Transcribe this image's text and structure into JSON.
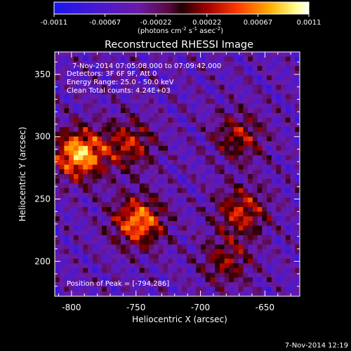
{
  "colorbar": {
    "ticks": [
      "-0.0011",
      "-0.00067",
      "-0.00022",
      "0.00022",
      "0.00067",
      "0.0011"
    ],
    "units_main": "(photons cm",
    "units_exp1": "-2",
    "units_mid": " s",
    "units_exp2": "-1",
    "units_end": " asec",
    "units_exp3": "-2",
    "units_close": ")"
  },
  "chart_data": {
    "type": "heatmap",
    "title": "Reconstructed RHESSI Image",
    "xlabel": "Heliocentric X (arcsec)",
    "ylabel": "Heliocentric Y (arcsec)",
    "xlim": [
      -813,
      -623
    ],
    "ylim": [
      172,
      368
    ],
    "x_ticks": [
      "-800",
      "-750",
      "-700",
      "-650"
    ],
    "y_ticks": [
      "200",
      "250",
      "300",
      "350"
    ],
    "x_tick_values": [
      -800,
      -750,
      -700,
      -650
    ],
    "y_tick_values": [
      200,
      250,
      300,
      350
    ],
    "value_range": [
      -0.0011,
      0.0011
    ],
    "colormap": "rhessi-flare (blue-purple-red-yellow-white)",
    "sources": [
      {
        "x": -794,
        "y": 286,
        "amp": 1.0
      },
      {
        "x": -748,
        "y": 232,
        "amp": 0.85
      },
      {
        "x": -755,
        "y": 294,
        "amp": 0.55
      },
      {
        "x": -668,
        "y": 240,
        "amp": 0.6
      },
      {
        "x": -670,
        "y": 300,
        "amp": 0.5
      },
      {
        "x": -680,
        "y": 200,
        "amp": 0.45
      }
    ],
    "peak": [
      -794,
      286
    ],
    "annotations": [
      "7-Nov-2014 07:05:08.000 to 07:09:42.000",
      "Detectors: 3F 6F 9F, Att 0",
      "Energy Range: 25.0 - 50.0 keV",
      "Clean    Total counts: 4.24E+03"
    ],
    "peak_label": "Position of Peak = [-794,286]"
  },
  "timestamp": "7-Nov-2014 12:19"
}
